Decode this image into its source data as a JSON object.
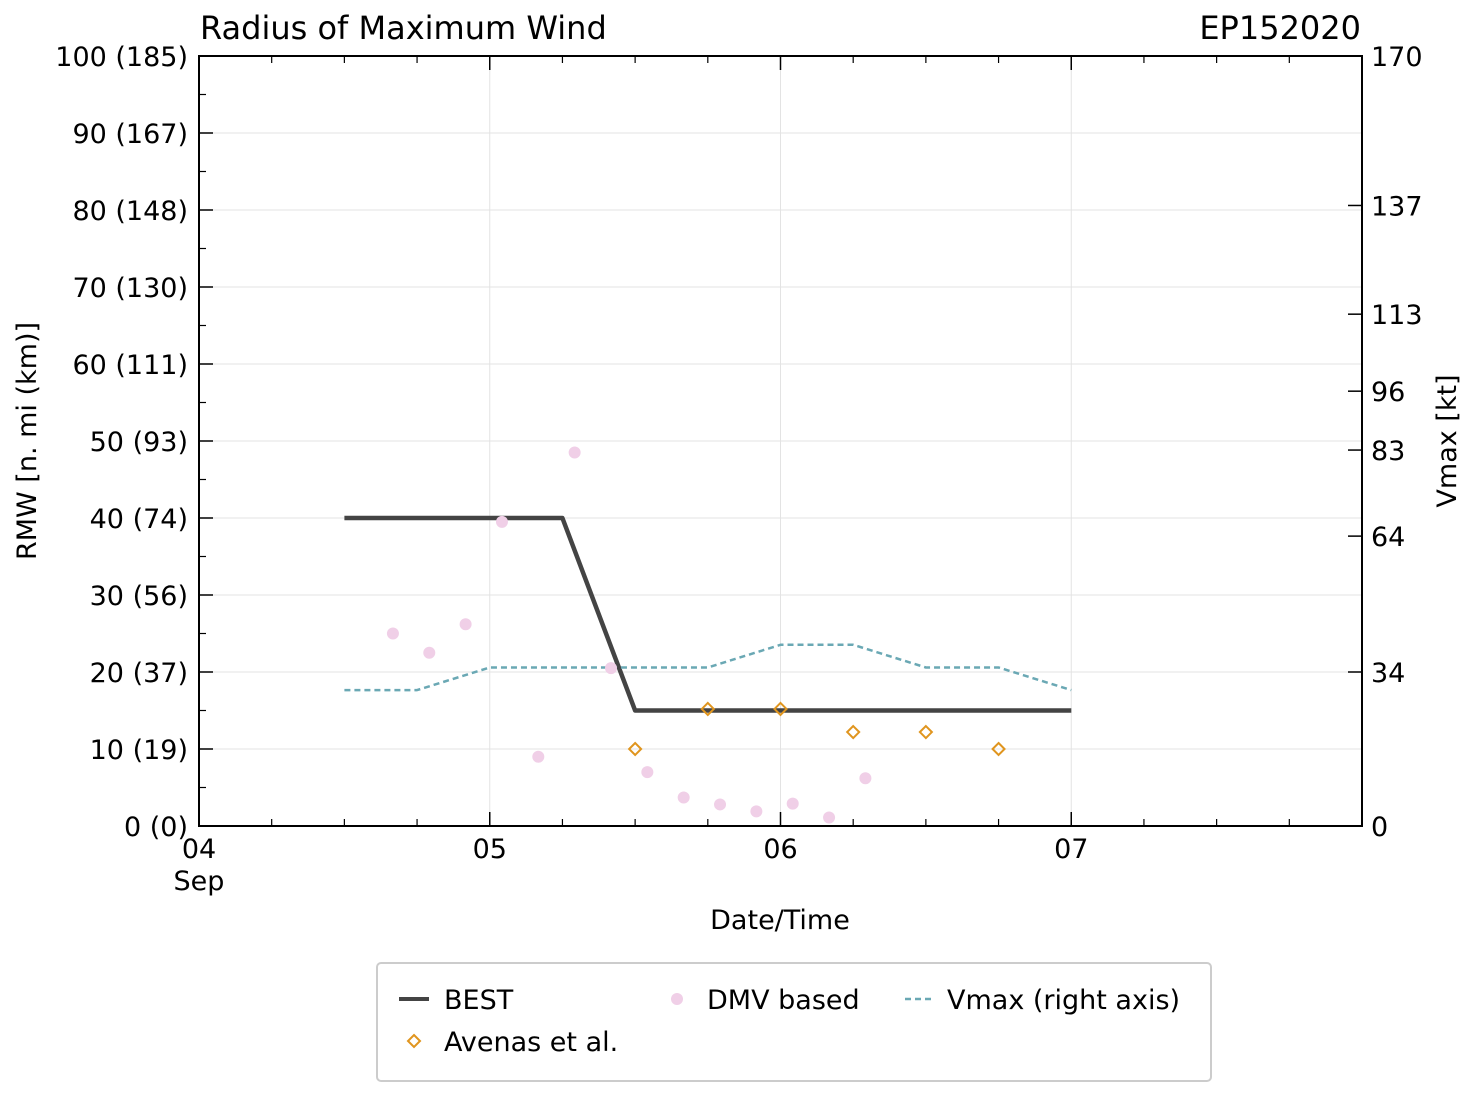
{
  "chart_data": {
    "type": "line",
    "title": "Radius of Maximum Wind",
    "storm_id": "EP152020",
    "xlabel": "Date/Time",
    "ylabel": "RMW [n. mi (km)]",
    "ylabel_right": "Vmax [kt]",
    "xlim": [
      0,
      4
    ],
    "ylim": [
      0,
      100
    ],
    "ylim_right": [
      0,
      170
    ],
    "x_ticks": [
      {
        "x": 0,
        "label": "04",
        "sublabel": "Sep"
      },
      {
        "x": 1,
        "label": "05",
        "sublabel": ""
      },
      {
        "x": 2,
        "label": "06",
        "sublabel": ""
      },
      {
        "x": 3,
        "label": "07",
        "sublabel": ""
      }
    ],
    "y_ticks": [
      {
        "v": 0,
        "label": "0 (0)"
      },
      {
        "v": 10,
        "label": "10 (19)"
      },
      {
        "v": 20,
        "label": "20 (37)"
      },
      {
        "v": 30,
        "label": "30 (56)"
      },
      {
        "v": 40,
        "label": "40 (74)"
      },
      {
        "v": 50,
        "label": "50 (93)"
      },
      {
        "v": 60,
        "label": "60 (111)"
      },
      {
        "v": 70,
        "label": "70 (130)"
      },
      {
        "v": 80,
        "label": "80 (148)"
      },
      {
        "v": 90,
        "label": "90 (167)"
      },
      {
        "v": 100,
        "label": "100 (185)"
      }
    ],
    "y_ticks_right": [
      {
        "v": 0,
        "label": "0"
      },
      {
        "v": 34,
        "label": "34"
      },
      {
        "v": 64,
        "label": "64"
      },
      {
        "v": 83,
        "label": "83"
      },
      {
        "v": 96,
        "label": "96"
      },
      {
        "v": 113,
        "label": "113"
      },
      {
        "v": 137,
        "label": "137"
      },
      {
        "v": 170,
        "label": "170"
      }
    ],
    "series": [
      {
        "name": "BEST",
        "kind": "line",
        "color": "#444444",
        "x": [
          0.5,
          0.75,
          1.0,
          1.25,
          1.5,
          1.75,
          2.0,
          2.25,
          2.5,
          2.75,
          3.0
        ],
        "y": [
          40,
          40,
          40,
          40,
          15,
          15,
          15,
          15,
          15,
          15,
          15
        ]
      },
      {
        "name": "DMV based",
        "kind": "scatter",
        "color": "#f0cfe7",
        "x": [
          0.667,
          0.792,
          0.917,
          1.042,
          1.167,
          1.292,
          1.417,
          1.542,
          1.667,
          1.792,
          1.917,
          2.042,
          2.167,
          2.292
        ],
        "y": [
          25,
          22.5,
          26.2,
          39.5,
          9,
          48.5,
          20.5,
          7,
          3.7,
          2.8,
          1.9,
          2.9,
          1.1,
          6.2
        ]
      },
      {
        "name": "Vmax (right axis)",
        "kind": "dashed-line",
        "axis": "right",
        "color": "#6aa8b4",
        "x": [
          0.5,
          0.75,
          1.0,
          1.25,
          1.5,
          1.75,
          2.0,
          2.25,
          2.5,
          2.75,
          3.0
        ],
        "y": [
          30,
          30,
          35,
          35,
          35,
          35,
          40,
          40,
          35,
          35,
          30
        ]
      },
      {
        "name": "Avenas et al.",
        "kind": "diamond",
        "color": "#e0951e",
        "x": [
          1.5,
          1.75,
          2.0,
          2.25,
          2.5,
          2.75
        ],
        "y": [
          10,
          15.2,
          15.2,
          12.2,
          12.2,
          10
        ]
      }
    ],
    "legend": {
      "placement": "bottom",
      "entries": [
        "BEST",
        "DMV based",
        "Vmax (right axis)",
        "Avenas et al."
      ]
    }
  }
}
